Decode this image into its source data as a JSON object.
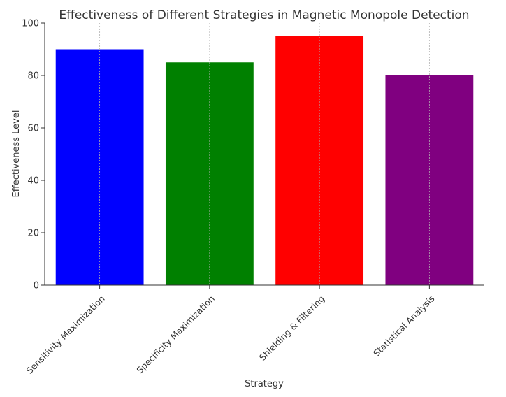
{
  "chart_data": {
    "type": "bar",
    "title": "Effectiveness of Different Strategies in Magnetic Monopole Detection",
    "xlabel": "Strategy",
    "ylabel": "Effectiveness Level",
    "categories": [
      "Sensitivity Maximization",
      "Specificity Maximization",
      "Shielding & Filtering",
      "Statistical Analysis"
    ],
    "values": [
      90,
      85,
      95,
      80
    ],
    "colors": [
      "#0000ff",
      "#008000",
      "#ff0000",
      "#800080"
    ],
    "ylim": [
      0,
      100
    ],
    "yticks": [
      0,
      20,
      40,
      60,
      80,
      100
    ],
    "grid": "vertical"
  }
}
